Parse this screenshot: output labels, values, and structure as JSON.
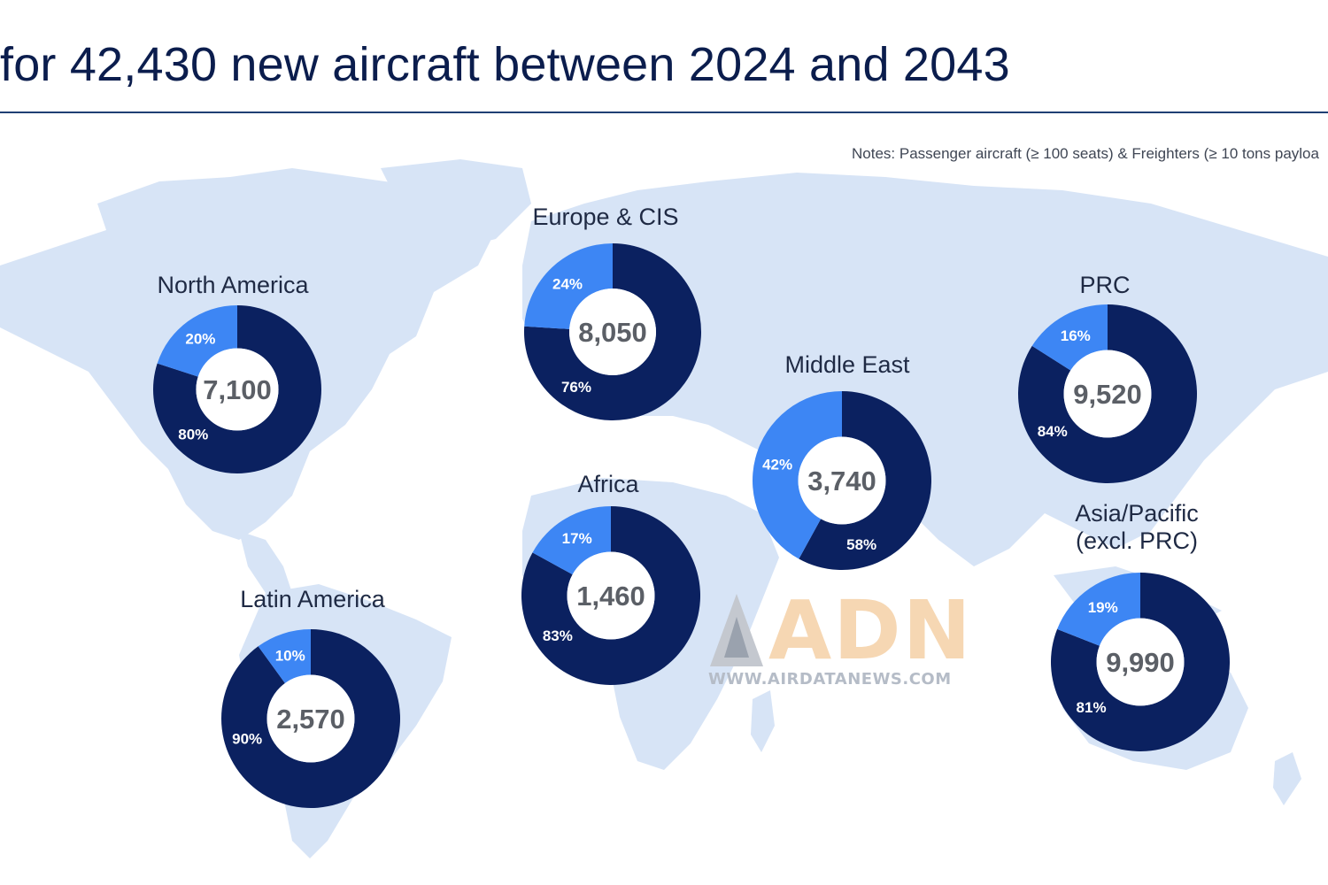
{
  "header": {
    "title": "for 42,430 new aircraft between 2024 and 2043",
    "notes": "Notes: Passenger aircraft (≥ 100 seats) & Freighters (≥ 10 tons payloa"
  },
  "colors": {
    "dark": "#0b2160",
    "light": "#3d86f4",
    "map": "#d7e4f6",
    "center_text": "#5b5f66"
  },
  "watermark": {
    "letters": "ADN",
    "url": "WWW.AIRDATANEWS.COM"
  },
  "chart_data": {
    "type": "pie",
    "title": "",
    "charts": [
      {
        "region": "North America",
        "total": "7,100",
        "values": [
          80,
          20
        ],
        "labels": [
          "80%",
          "20%"
        ]
      },
      {
        "region": "Europe & CIS",
        "total": "8,050",
        "values": [
          76,
          24
        ],
        "labels": [
          "76%",
          "24%"
        ]
      },
      {
        "region": "Middle East",
        "total": "3,740",
        "values": [
          58,
          42
        ],
        "labels": [
          "58%",
          "42%"
        ]
      },
      {
        "region": "PRC",
        "total": "9,520",
        "values": [
          84,
          16
        ],
        "labels": [
          "84%",
          "16%"
        ]
      },
      {
        "region": "Africa",
        "total": "1,460",
        "values": [
          83,
          17
        ],
        "labels": [
          "83%",
          "17%"
        ]
      },
      {
        "region": "Latin America",
        "total": "2,570",
        "values": [
          90,
          10
        ],
        "labels": [
          "90%",
          "10%"
        ]
      },
      {
        "region": "Asia/Pacific\n(excl. PRC)",
        "total": "9,990",
        "values": [
          81,
          19
        ],
        "labels": [
          "81%",
          "19%"
        ]
      }
    ]
  }
}
